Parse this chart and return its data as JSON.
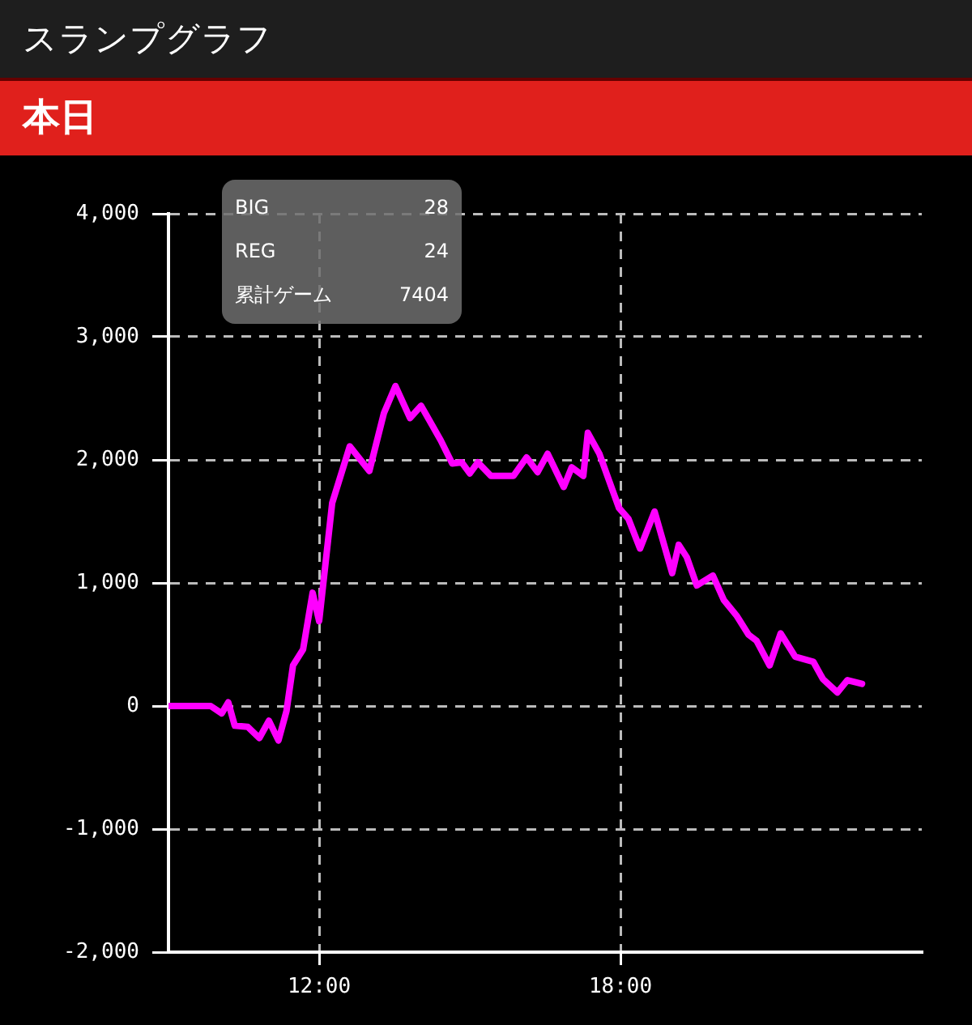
{
  "chart_data": {
    "type": "line",
    "title": "スランプグラフ",
    "subtitle": "本日",
    "annotations": [
      "BIG 28",
      "REG 24",
      "累計ゲーム 7404"
    ],
    "x": [
      9.03,
      9.84,
      10.06,
      10.19,
      10.32,
      10.58,
      10.81,
      11.0,
      11.19,
      11.35,
      11.48,
      11.68,
      11.87,
      12.0,
      12.26,
      12.61,
      13.0,
      13.29,
      13.52,
      13.81,
      14.03,
      14.42,
      14.65,
      14.84,
      15.0,
      15.16,
      15.42,
      15.87,
      16.13,
      16.35,
      16.55,
      16.87,
      17.03,
      17.26,
      17.35,
      17.58,
      17.97,
      18.16,
      18.39,
      18.68,
      19.03,
      19.16,
      19.32,
      19.52,
      19.84,
      20.06,
      20.32,
      20.55,
      20.71,
      20.97,
      21.19,
      21.48,
      21.84,
      22.03,
      22.32,
      22.52,
      22.81
    ],
    "series": [
      {
        "color": "#ff00ff",
        "values": [
          0,
          0,
          -60,
          30,
          -160,
          -170,
          -260,
          -120,
          -280,
          -40,
          330,
          460,
          920,
          690,
          1650,
          2110,
          1910,
          2380,
          2600,
          2340,
          2440,
          2160,
          1970,
          1980,
          1890,
          1980,
          1870,
          1870,
          2020,
          1900,
          2050,
          1780,
          1940,
          1870,
          2220,
          2050,
          1610,
          1520,
          1280,
          1580,
          1080,
          1310,
          1210,
          980,
          1060,
          860,
          730,
          580,
          530,
          330,
          590,
          400,
          360,
          220,
          110,
          210,
          180
        ]
      }
    ],
    "xlim": [
      9,
      24
    ],
    "xticks": [
      {
        "value": 12,
        "label": "12:00"
      },
      {
        "value": 18,
        "label": "18:00"
      }
    ],
    "ylim": [
      -2000,
      4000
    ],
    "yticks": [
      {
        "value": -2000,
        "label": "-2,000"
      },
      {
        "value": -1000,
        "label": "-1,000"
      },
      {
        "value": 0,
        "label": "0"
      },
      {
        "value": 1000,
        "label": "1,000"
      },
      {
        "value": 2000,
        "label": "2,000"
      },
      {
        "value": 3000,
        "label": "3,000"
      },
      {
        "value": 4000,
        "label": "4,000"
      }
    ],
    "grid": true,
    "legend": false,
    "marker": "none",
    "line_style": "solid"
  }
}
